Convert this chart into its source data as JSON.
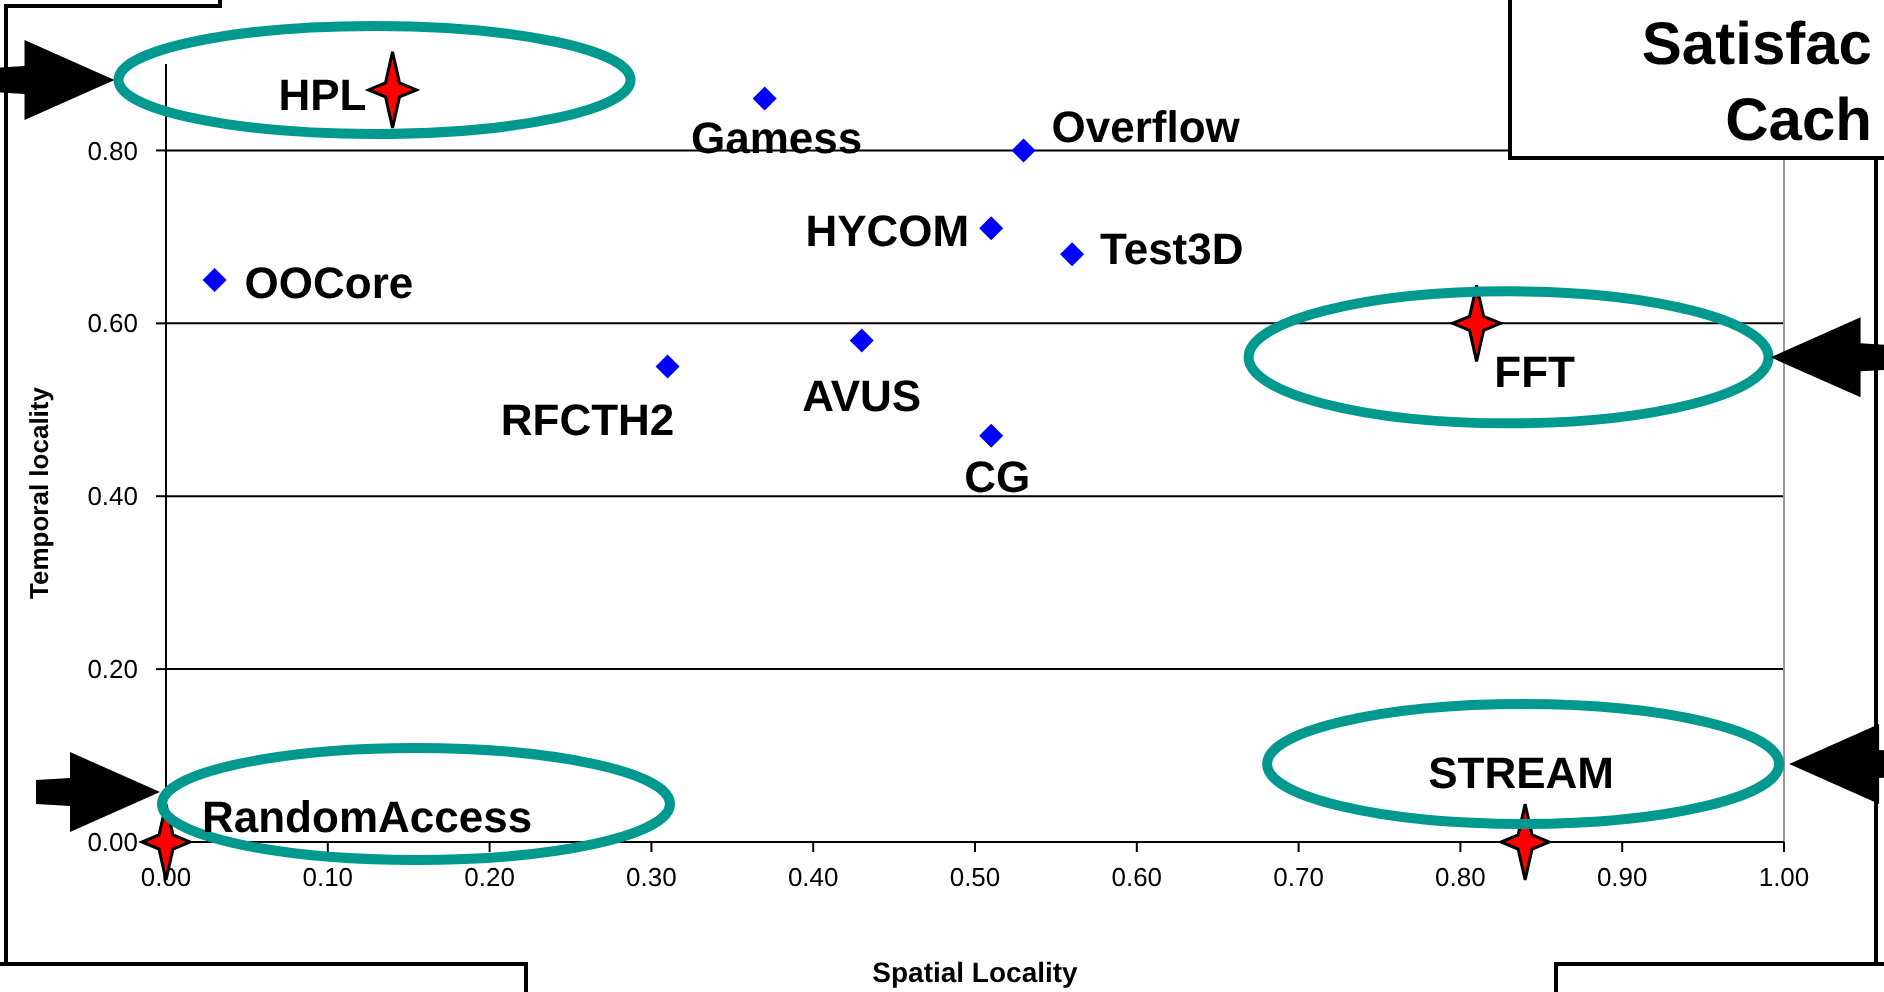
{
  "chart_data": {
    "type": "scatter",
    "xlabel": "Spatial Locality",
    "ylabel": "Temporal locality",
    "xlim": [
      0,
      1
    ],
    "xticks": [
      {
        "value": 0,
        "label": "0.00"
      },
      {
        "value": 0.1,
        "label": "0.10"
      },
      {
        "value": 0.2,
        "label": "0.20"
      },
      {
        "value": 0.3,
        "label": "0.30"
      },
      {
        "value": 0.4,
        "label": "0.40"
      },
      {
        "value": 0.5,
        "label": "0.50"
      },
      {
        "value": 0.6,
        "label": "0.60"
      },
      {
        "value": 0.7,
        "label": "0.70"
      },
      {
        "value": 0.8,
        "label": "0.80"
      },
      {
        "value": 0.9,
        "label": "0.90"
      },
      {
        "value": 1,
        "label": "1.00"
      }
    ],
    "ylim": [
      0,
      0.9
    ],
    "yticks": [
      {
        "value": 0,
        "label": "0.00"
      },
      {
        "value": 0.2,
        "label": "0.20"
      },
      {
        "value": 0.4,
        "label": "0.40"
      },
      {
        "value": 0.6,
        "label": "0.60"
      },
      {
        "value": 0.8,
        "label": "0.80"
      }
    ],
    "grid": "y",
    "series": [
      {
        "color": "#0000ff",
        "marker": "diamond",
        "x": [
          0.37,
          0.53,
          0.51,
          0.56,
          0.03,
          0.31,
          0.43,
          0.51
        ],
        "values": [
          0.86,
          0.8,
          0.71,
          0.68,
          0.65,
          0.55,
          0.58,
          0.47
        ]
      },
      {
        "color": "#ff0000",
        "marker": "star",
        "x": [
          0.14,
          0.81,
          0,
          0.84
        ],
        "values": [
          0.87,
          0.6,
          0,
          0
        ]
      }
    ],
    "annotations": [
      {
        "text": "Gamess",
        "x": 0.37,
        "y": 0.86
      },
      {
        "text": "Overflow",
        "x": 0.53,
        "y": 0.8
      },
      {
        "text": "HYCOM",
        "x": 0.51,
        "y": 0.71
      },
      {
        "text": "Test3D",
        "x": 0.56,
        "y": 0.68
      },
      {
        "text": "OOCore",
        "x": 0.03,
        "y": 0.65
      },
      {
        "text": "RFCTH2",
        "x": 0.31,
        "y": 0.55
      },
      {
        "text": "AVUS",
        "x": 0.43,
        "y": 0.58
      },
      {
        "text": "CG",
        "x": 0.51,
        "y": 0.47
      },
      {
        "text": "HPL",
        "x": 0.14,
        "y": 0.87
      },
      {
        "text": "FFT",
        "x": 0.81,
        "y": 0.6
      },
      {
        "text": "RandomAccess",
        "x": 0,
        "y": 0
      },
      {
        "text": "STREAM",
        "x": 0.84,
        "y": 0
      },
      "Satisfac",
      "Cach"
    ]
  }
}
